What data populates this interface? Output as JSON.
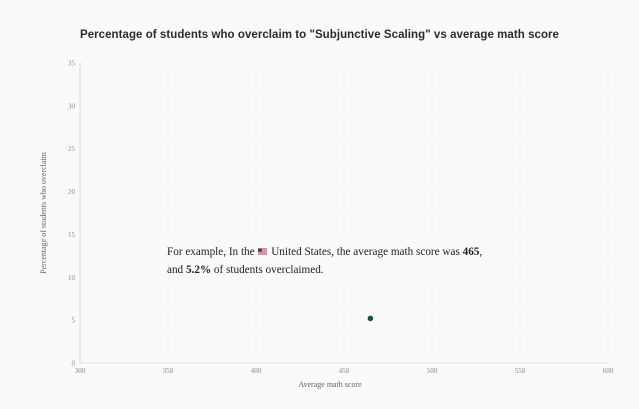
{
  "chart_data": {
    "type": "scatter",
    "title": "Percentage of students who overclaim to \"Subjunctive Scaling\" vs average math score",
    "xlabel": "Average math score",
    "ylabel": "Percentage of students who overclaim",
    "xlim": [
      300,
      600
    ],
    "ylim": [
      0,
      35
    ],
    "xticks": [
      "300",
      "350",
      "400",
      "450",
      "500",
      "550",
      "600"
    ],
    "yticks": [
      "0",
      "5",
      "10",
      "15",
      "20",
      "25",
      "30",
      "35"
    ],
    "grid": "vertical",
    "point_color": "#1d4b4f",
    "points": [
      {
        "country": "United States",
        "x": 465,
        "y": 5.2
      }
    ]
  },
  "annotation": {
    "prefix": "For example, In the",
    "flag_icon": "us-flag-icon",
    "country": "United States",
    "middle": ", the average math score was",
    "score": "465",
    "comma": ",",
    "line2_prefix": "and",
    "percent": "5.2%",
    "suffix": "of students overclaimed."
  }
}
